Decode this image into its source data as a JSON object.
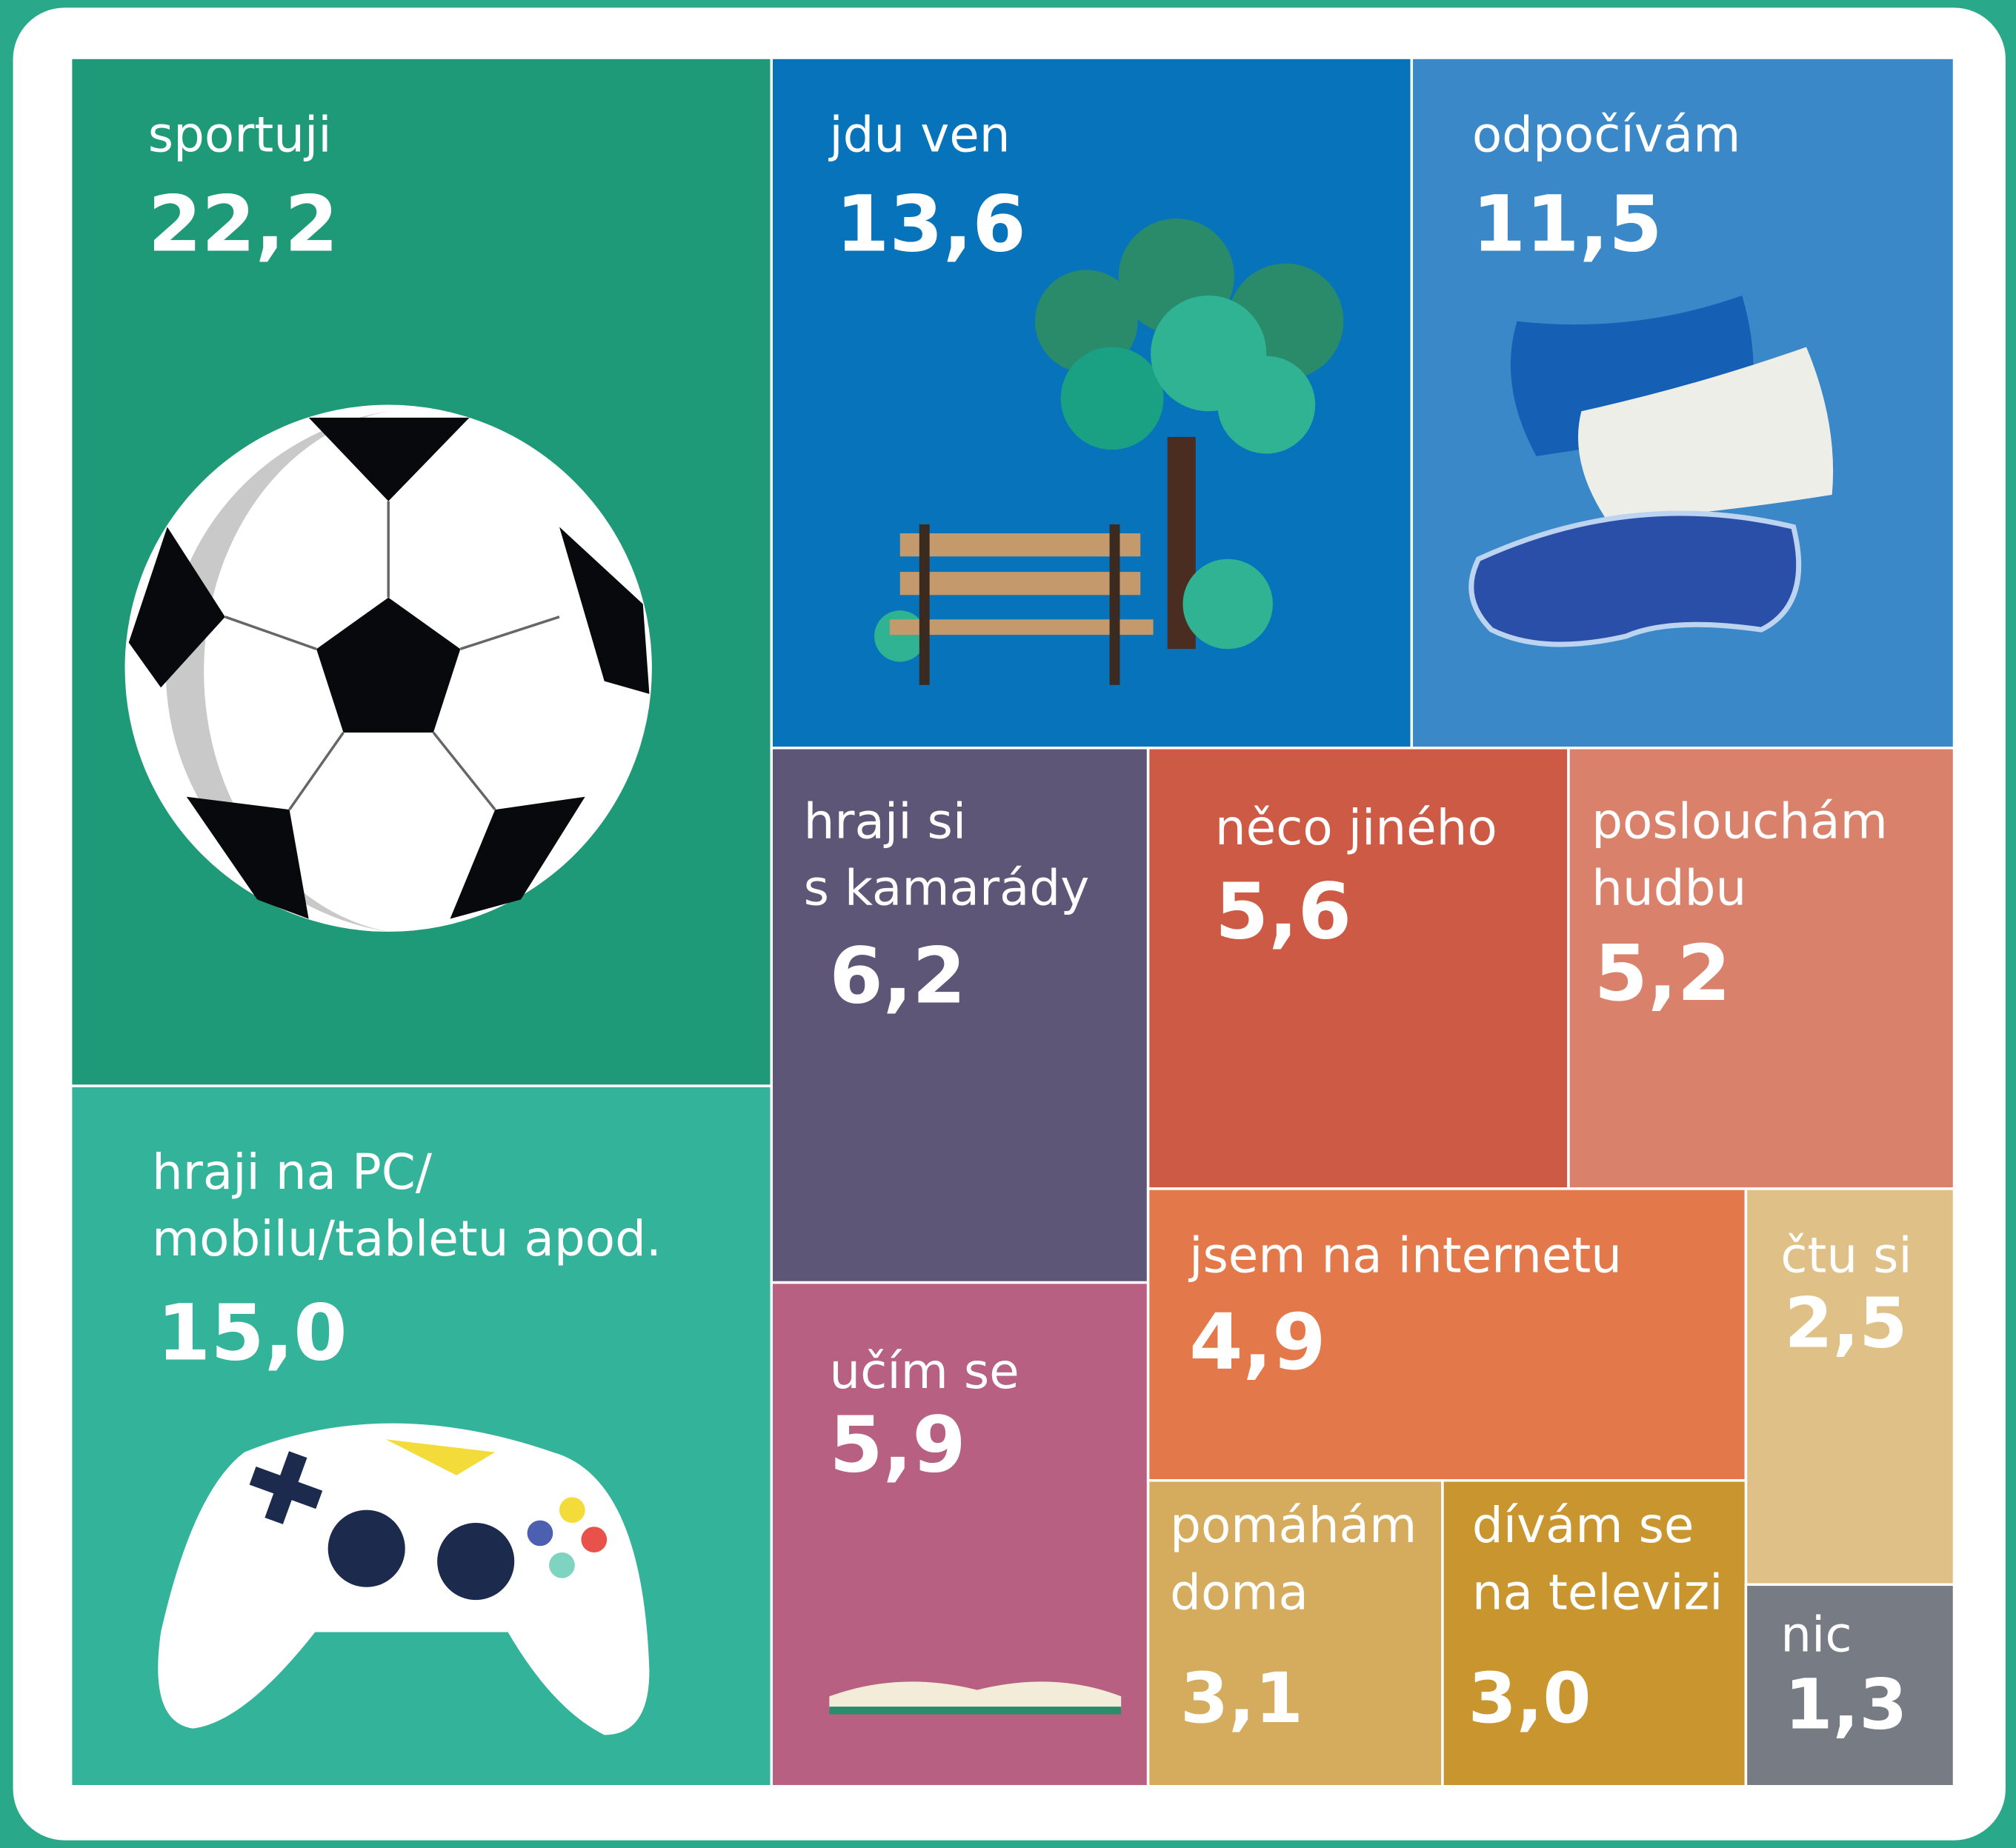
{
  "chart_data": {
    "type": "treemap",
    "categories": [
      [
        "sportuji"
      ],
      [
        "hraji na PC/",
        "mobilu/tabletu apod."
      ],
      [
        "jdu ven"
      ],
      [
        "odpočívám"
      ],
      [
        "hraji si",
        "s kamarády"
      ],
      [
        "něco jiného"
      ],
      [
        "poslouchám",
        "hudbu"
      ],
      [
        "učím se"
      ],
      [
        "jsem na internetu"
      ],
      [
        "čtu si"
      ],
      [
        "pomáhám",
        "doma"
      ],
      [
        "dívám se",
        "na televizi"
      ],
      [
        "nic"
      ]
    ],
    "values": [
      22.2,
      15.0,
      13.6,
      11.5,
      6.2,
      5.6,
      5.2,
      5.9,
      4.9,
      2.5,
      3.1,
      3.0,
      1.3
    ],
    "value_labels": [
      "22,2",
      "15,0",
      "13,6",
      "11,5",
      "6,2",
      "5,6",
      "5,2",
      "5,9",
      "4,9",
      "2,5",
      "3,1",
      "3,0",
      "1,3"
    ],
    "colors": [
      "#1e9a78",
      "#32b39a",
      "#0673bb",
      "#3b88c8",
      "#5e5677",
      "#cc5a44",
      "#d9816a",
      "#b86082",
      "#e3784a",
      "#dfc086",
      "#d5ac5e",
      "#c8952e",
      "#777b83"
    ]
  }
}
